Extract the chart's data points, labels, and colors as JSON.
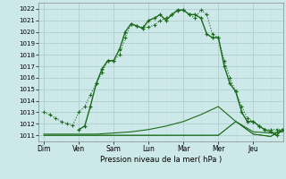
{
  "title": "Pression niveau de la mer( hPa )",
  "background_color": "#cde8e8",
  "grid_major_color": "#b0cece",
  "grid_minor_color": "#c8dede",
  "line_color": "#1a6b1a",
  "x_labels": [
    "Dim",
    "Ven",
    "Sam",
    "Lun",
    "Mar",
    "Mer",
    "Jeu"
  ],
  "ylim": [
    1010.5,
    1022.5
  ],
  "yticks": [
    1011,
    1012,
    1013,
    1014,
    1015,
    1016,
    1017,
    1018,
    1019,
    1020,
    1021,
    1022
  ],
  "line1_x": [
    0.0,
    0.17,
    0.33,
    0.5,
    0.67,
    0.83,
    1.0,
    1.17,
    1.33,
    1.5,
    1.67,
    1.83,
    2.0,
    2.17,
    2.33,
    2.5,
    2.67,
    2.83,
    3.0,
    3.17,
    3.33,
    3.5,
    3.67,
    3.83,
    4.0,
    4.17,
    4.33,
    4.5,
    4.67,
    4.83,
    5.0,
    5.17,
    5.33,
    5.5,
    5.67,
    5.83,
    6.0,
    6.17,
    6.33,
    6.5,
    6.67,
    6.83
  ],
  "line1_y": [
    1013.0,
    1012.8,
    1012.5,
    1012.2,
    1012.0,
    1011.9,
    1013.0,
    1013.5,
    1014.5,
    1015.5,
    1016.5,
    1017.5,
    1017.5,
    1018.0,
    1019.5,
    1020.7,
    1020.5,
    1020.4,
    1020.4,
    1020.6,
    1021.0,
    1021.2,
    1021.5,
    1021.8,
    1021.9,
    1021.5,
    1021.2,
    1021.9,
    1021.5,
    1019.8,
    1019.5,
    1017.5,
    1016.0,
    1014.8,
    1013.5,
    1012.5,
    1012.2,
    1011.8,
    1011.5,
    1011.5,
    1011.5,
    1011.5
  ],
  "line2_x": [
    1.0,
    1.17,
    1.33,
    1.5,
    1.67,
    1.83,
    2.0,
    2.17,
    2.33,
    2.5,
    2.67,
    2.83,
    3.0,
    3.17,
    3.33,
    3.5,
    3.67,
    3.83,
    4.0,
    4.17,
    4.33,
    4.5,
    4.67,
    4.83,
    5.0,
    5.17,
    5.33,
    5.5,
    5.67,
    5.83,
    6.0,
    6.17,
    6.33,
    6.5,
    6.67,
    6.83
  ],
  "line2_y": [
    1011.5,
    1011.8,
    1013.5,
    1015.5,
    1016.8,
    1017.5,
    1017.5,
    1018.5,
    1020.0,
    1020.7,
    1020.5,
    1020.3,
    1021.0,
    1021.2,
    1021.5,
    1021.0,
    1021.5,
    1021.9,
    1021.9,
    1021.5,
    1021.5,
    1021.2,
    1019.8,
    1019.5,
    1019.5,
    1017.0,
    1015.5,
    1014.8,
    1013.0,
    1012.2,
    1012.2,
    1011.8,
    1011.5,
    1011.3,
    1011.0,
    1011.5
  ],
  "line3_x": [
    0.0,
    0.5,
    1.0,
    1.5,
    2.0,
    2.5,
    3.0,
    3.5,
    4.0,
    4.5,
    5.0,
    5.5,
    6.0,
    6.5,
    6.83
  ],
  "line3_y": [
    1011.1,
    1011.1,
    1011.1,
    1011.1,
    1011.2,
    1011.3,
    1011.5,
    1011.8,
    1012.2,
    1012.8,
    1013.5,
    1012.2,
    1011.3,
    1011.2,
    1011.3
  ],
  "line4_x": [
    0.0,
    0.5,
    1.0,
    1.5,
    2.0,
    2.5,
    3.0,
    3.5,
    4.0,
    4.5,
    5.0,
    5.5,
    6.0,
    6.5,
    6.83
  ],
  "line4_y": [
    1011.0,
    1011.0,
    1011.0,
    1011.0,
    1011.0,
    1011.0,
    1011.0,
    1011.0,
    1011.0,
    1011.0,
    1011.0,
    1012.2,
    1011.1,
    1010.9,
    1011.5
  ],
  "line5_x": [
    0.0,
    0.5,
    1.0,
    1.5,
    2.0,
    2.5,
    3.0,
    3.5,
    4.0,
    4.5,
    5.0,
    5.5,
    6.0,
    6.5,
    6.83
  ],
  "line5_y": [
    1011.0,
    1011.0,
    1011.0,
    1011.0,
    1011.0,
    1011.0,
    1011.0,
    1011.0,
    1011.0,
    1011.0,
    1011.0,
    1012.2,
    1011.1,
    1010.9,
    1011.5
  ]
}
